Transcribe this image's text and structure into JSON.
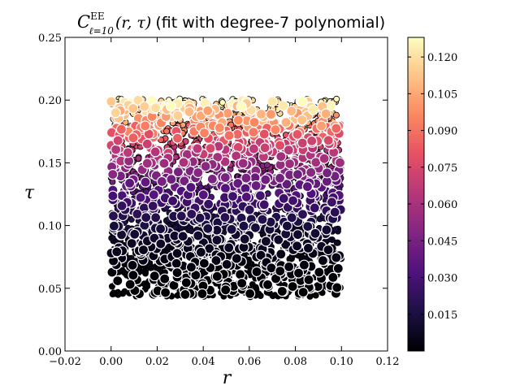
{
  "chart_data": {
    "type": "scatter",
    "title": {
      "main": "C",
      "superscript": "EE",
      "subscript": "ℓ=10",
      "args": "(r, τ)",
      "note": "(fit with degree-7 polynomial)"
    },
    "xlabel": "r",
    "ylabel": "τ",
    "xlim": [
      -0.02,
      0.12
    ],
    "ylim": [
      0.0,
      0.25
    ],
    "xticks": [
      "−0.02",
      "0.00",
      "0.02",
      "0.04",
      "0.06",
      "0.08",
      "0.10",
      "0.12"
    ],
    "yticks": [
      "0.00",
      "0.05",
      "0.10",
      "0.15",
      "0.20",
      "0.25"
    ],
    "colormap": "magma",
    "colorbar": {
      "range": [
        0.0,
        0.128
      ],
      "ticks": [
        "0.015",
        "0.030",
        "0.045",
        "0.060",
        "0.075",
        "0.090",
        "0.105",
        "0.120"
      ]
    },
    "points_description": {
      "r_range": [
        0.0,
        0.1
      ],
      "tau_range": [
        0.04,
        0.2
      ],
      "value_model": "≈ 0.128·((τ−0.04)/0.16)^2.2",
      "marker_styles": [
        "large circle, white edge",
        "small circle, black edge"
      ]
    },
    "grid": false,
    "legend": "none"
  }
}
